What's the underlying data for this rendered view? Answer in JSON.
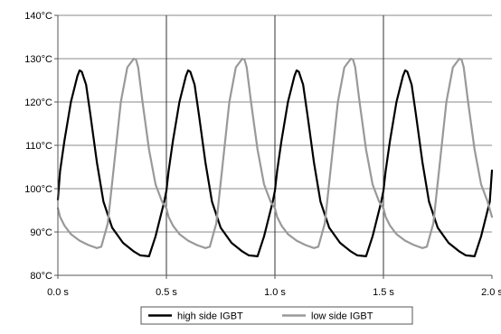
{
  "chart_data": {
    "type": "line",
    "title": "",
    "xlabel": "",
    "ylabel": "",
    "xlim": [
      0,
      2
    ],
    "ylim": [
      80,
      140
    ],
    "x_ticks": [
      0,
      0.5,
      1.0,
      1.5,
      2.0
    ],
    "x_tick_labels": [
      "0.0 s",
      "0.5 s",
      "1.0 s",
      "1.5 s",
      "2.0 s"
    ],
    "y_ticks": [
      80,
      90,
      100,
      110,
      120,
      130,
      140
    ],
    "y_tick_labels": [
      "80°C",
      "90°C",
      "100°C",
      "110°C",
      "120°C",
      "130°C",
      "140°C"
    ],
    "grid": "horizontal lines at every y tick; vertical lines at 0.5 s, 1.0 s and 1.5 s",
    "legend_position": "bottom-center",
    "series": [
      {
        "name": "high side IGBT",
        "color": "#000000",
        "x": [
          0,
          0.01,
          0.03,
          0.06,
          0.09,
          0.1,
          0.11,
          0.13,
          0.15,
          0.18,
          0.21,
          0.25,
          0.3,
          0.35,
          0.38,
          0.42,
          0.45,
          0.49,
          0.5,
          0.51,
          0.53,
          0.56,
          0.59,
          0.6,
          0.61,
          0.63,
          0.65,
          0.68,
          0.71,
          0.75,
          0.8,
          0.85,
          0.88,
          0.92,
          0.95,
          0.99,
          1.0,
          1.01,
          1.03,
          1.06,
          1.09,
          1.1,
          1.11,
          1.13,
          1.15,
          1.18,
          1.21,
          1.25,
          1.3,
          1.35,
          1.38,
          1.42,
          1.45,
          1.49,
          1.5,
          1.51,
          1.53,
          1.56,
          1.59,
          1.6,
          1.61,
          1.63,
          1.65,
          1.68,
          1.71,
          1.75,
          1.8,
          1.85,
          1.88,
          1.92,
          1.95,
          1.99,
          2.0
        ],
        "values": [
          97.5,
          104,
          111,
          120,
          126,
          127.3,
          127,
          124,
          117,
          106,
          97,
          91,
          87.5,
          85.5,
          84.6,
          84.4,
          89,
          97,
          99.5,
          104,
          111,
          120,
          126,
          127.3,
          127,
          124,
          117,
          106,
          97,
          91,
          87.5,
          85.5,
          84.6,
          84.4,
          89,
          97,
          99.5,
          104,
          111,
          120,
          126,
          127.3,
          127,
          124,
          117,
          106,
          97,
          91,
          87.5,
          85.5,
          84.6,
          84.4,
          89,
          97,
          99.5,
          104,
          111,
          120,
          126,
          127.3,
          127,
          124,
          117,
          106,
          97,
          91,
          87.5,
          85.5,
          84.6,
          84.4,
          89,
          97,
          104.2
        ]
      },
      {
        "name": "low side IGBT",
        "color": "#999999",
        "x": [
          0,
          0.01,
          0.03,
          0.06,
          0.1,
          0.14,
          0.18,
          0.2,
          0.23,
          0.26,
          0.29,
          0.32,
          0.35,
          0.36,
          0.37,
          0.39,
          0.42,
          0.45,
          0.48,
          0.5,
          0.51,
          0.53,
          0.56,
          0.6,
          0.64,
          0.68,
          0.7,
          0.73,
          0.76,
          0.79,
          0.82,
          0.85,
          0.86,
          0.87,
          0.89,
          0.92,
          0.95,
          0.98,
          1.0,
          1.01,
          1.03,
          1.06,
          1.1,
          1.14,
          1.18,
          1.2,
          1.23,
          1.26,
          1.29,
          1.32,
          1.35,
          1.36,
          1.37,
          1.39,
          1.42,
          1.45,
          1.48,
          1.5,
          1.51,
          1.53,
          1.56,
          1.6,
          1.64,
          1.68,
          1.7,
          1.73,
          1.76,
          1.79,
          1.82,
          1.85,
          1.86,
          1.87,
          1.89,
          1.92,
          1.95,
          1.98,
          2.0
        ],
        "values": [
          95.5,
          93.5,
          91.5,
          89.5,
          88,
          87,
          86.3,
          86.6,
          92,
          106,
          120,
          128,
          130,
          129.8,
          128,
          120,
          109,
          101,
          97,
          95.5,
          93.5,
          91.5,
          89.5,
          88,
          87,
          86.3,
          86.6,
          92,
          106,
          120,
          128,
          130,
          129.8,
          128,
          120,
          109,
          101,
          97,
          95.5,
          93.5,
          91.5,
          89.5,
          88,
          87,
          86.3,
          86.6,
          92,
          106,
          120,
          128,
          130,
          129.8,
          128,
          120,
          109,
          101,
          97,
          95.5,
          93.5,
          91.5,
          89.5,
          88,
          87,
          86.3,
          86.6,
          92,
          106,
          120,
          128,
          130,
          129.8,
          128,
          120,
          109,
          101,
          97,
          93.5
        ]
      }
    ]
  }
}
